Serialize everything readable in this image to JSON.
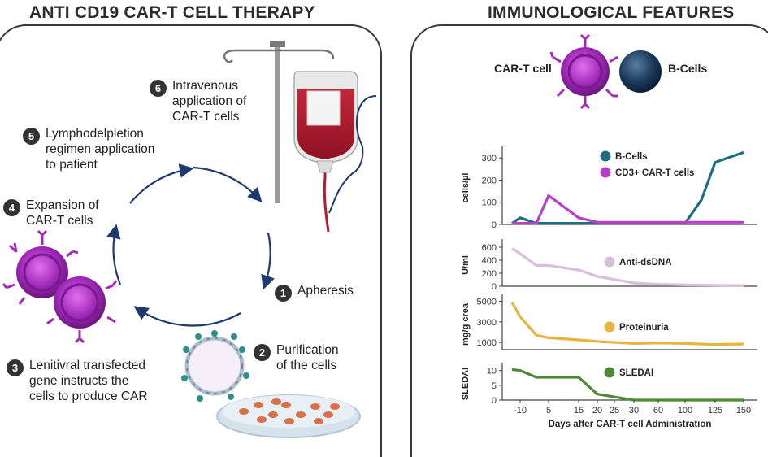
{
  "left_panel": {
    "title": "ANTI CD19 CAR-T CELL THERAPY",
    "steps": [
      {
        "num": "1",
        "text": "Apheresis"
      },
      {
        "num": "2",
        "text": "Purification\nof the cells"
      },
      {
        "num": "3",
        "text": "Lenitivral transfected\ngene instructs the\ncells to produce CAR"
      },
      {
        "num": "4",
        "text": "Expansion of\nCAR-T cells"
      },
      {
        "num": "5",
        "text": "Lymphodelpletion\nregimen application\nto patient"
      },
      {
        "num": "6",
        "text": "Intravenous\napplication of\nCAR-T cells"
      }
    ]
  },
  "right_panel": {
    "title": "IMMUNOLOGICAL FEATURES",
    "legend_cells": {
      "cart": "CAR-T cell",
      "bcell": "B-Cells"
    }
  },
  "colors": {
    "bcells": "#1f6e80",
    "cart": "#b63fc5",
    "antidsdna": "#d9bfdd",
    "proteinuria": "#e8b340",
    "sledai": "#4f8a34",
    "cycle_arrow": "#1f3a6e"
  },
  "chart_data": [
    {
      "type": "line",
      "ylabel": "cells/µl",
      "yticks": [
        0,
        100,
        200,
        300
      ],
      "ylim": [
        0,
        330
      ],
      "x_categories": [
        "-10",
        "5",
        "15",
        "30",
        "60",
        "100",
        "125",
        "150"
      ],
      "series": [
        {
          "name": "B-Cells",
          "color": "#1f6e80",
          "points": [
            [
              -12.5,
              5
            ],
            [
              -10,
              30
            ],
            [
              0,
              5
            ],
            [
              5,
              5
            ],
            [
              15,
              5
            ],
            [
              20,
              5
            ],
            [
              30,
              5
            ],
            [
              60,
              5
            ],
            [
              90,
              5
            ],
            [
              100,
              5
            ],
            [
              112,
              110
            ],
            [
              125,
              280
            ],
            [
              150,
              325
            ]
          ]
        },
        {
          "name": "CD3+ CAR-T cells",
          "color": "#b63fc5",
          "points": [
            [
              -12.5,
              5
            ],
            [
              -10,
              5
            ],
            [
              0,
              5
            ],
            [
              5,
              130
            ],
            [
              15,
              30
            ],
            [
              20,
              10
            ],
            [
              30,
              10
            ],
            [
              60,
              10
            ],
            [
              100,
              10
            ],
            [
              125,
              10
            ],
            [
              150,
              10
            ]
          ]
        }
      ]
    },
    {
      "type": "line",
      "ylabel": "U/ml",
      "yticks": [
        0,
        200,
        400,
        600
      ],
      "ylim": [
        0,
        650
      ],
      "series": [
        {
          "name": "Anti-dsDNA",
          "color": "#d9bfdd",
          "points": [
            [
              -12.5,
              580
            ],
            [
              -10,
              500
            ],
            [
              0,
              320
            ],
            [
              5,
              320
            ],
            [
              15,
              250
            ],
            [
              20,
              150
            ],
            [
              30,
              50
            ],
            [
              60,
              30
            ],
            [
              100,
              20
            ],
            [
              125,
              15
            ],
            [
              150,
              10
            ]
          ]
        }
      ]
    },
    {
      "type": "line",
      "ylabel": "mg/g crea",
      "yticks": [
        1000,
        3000,
        5000
      ],
      "ylim": [
        300,
        5200
      ],
      "series": [
        {
          "name": "Proteinuria",
          "color": "#e8b340",
          "points": [
            [
              -12.5,
              4900
            ],
            [
              -10,
              3500
            ],
            [
              0,
              1700
            ],
            [
              5,
              1450
            ],
            [
              15,
              1250
            ],
            [
              20,
              1100
            ],
            [
              30,
              900
            ],
            [
              60,
              950
            ],
            [
              100,
              900
            ],
            [
              125,
              800
            ],
            [
              150,
              850
            ]
          ]
        }
      ]
    },
    {
      "type": "line",
      "ylabel": "SLEDAI",
      "xlabel": "Days after CAR-T cell Administration",
      "yticks": [
        0,
        5,
        10
      ],
      "ylim": [
        0,
        11
      ],
      "xticks": [
        "-10",
        "5",
        "15",
        "20",
        "25",
        "30",
        "60",
        "100",
        "125",
        "150"
      ],
      "series": [
        {
          "name": "SLEDAI",
          "color": "#4f8a34",
          "points": [
            [
              -12.5,
              10.3
            ],
            [
              -10,
              10
            ],
            [
              0,
              7.7
            ],
            [
              5,
              7.7
            ],
            [
              15,
              7.7
            ],
            [
              20,
              2
            ],
            [
              30,
              0
            ],
            [
              60,
              0
            ],
            [
              100,
              0
            ],
            [
              125,
              0
            ],
            [
              150,
              0
            ]
          ]
        }
      ]
    }
  ]
}
